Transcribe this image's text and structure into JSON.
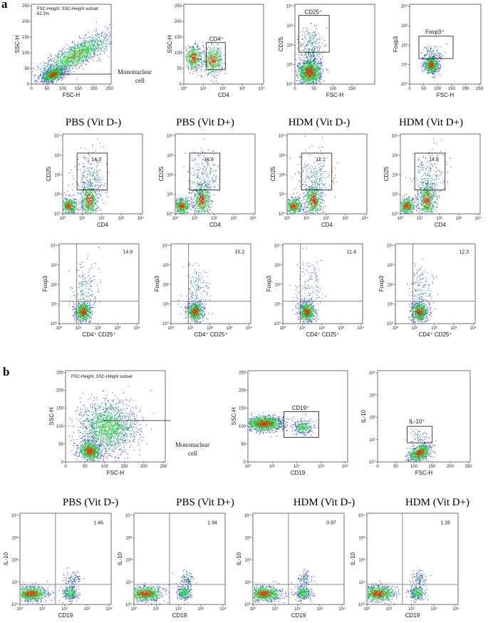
{
  "figure": {
    "panel_a_letter": "a",
    "panel_b_letter": "b",
    "conditions": [
      "PBS (Vit D-)",
      "PBS (Vit D+)",
      "HDM (Vit D-)",
      "HDM (Vit D+)"
    ]
  },
  "colors": {
    "density_low": "#1e1ecc",
    "density_mid": "#22cc44",
    "density_high": "#ee2200",
    "gate": "#111111"
  },
  "chart_data": [
    {
      "id": "a_scatter",
      "type": "scatter",
      "xlabel": "FSC-H",
      "ylabel": "SSC-H",
      "xticks": [
        "0",
        "50",
        "100",
        "150",
        "200",
        "250"
      ],
      "yticks": [
        "0",
        "50",
        "100",
        "150",
        "200",
        "250"
      ],
      "subset_label": "FSC-Height, SSC-Height subset",
      "subset_percent": "82.3%",
      "annotation": "Mononuclear cell"
    },
    {
      "id": "a_cd4",
      "type": "scatter",
      "xlabel": "CD4",
      "ylabel": "SSC-H",
      "xticks": [
        "10⁰",
        "10¹",
        "10²",
        "10³",
        "10⁴"
      ],
      "yticks": [
        "0",
        "50",
        "100",
        "150",
        "200",
        "250"
      ],
      "gate_label": "CD4⁺"
    },
    {
      "id": "a_cd25",
      "type": "scatter",
      "xlabel": "FSC-H",
      "ylabel": "CD25",
      "xticks": [
        "0",
        "50",
        "100",
        "150"
      ],
      "yticks": [
        "10⁰",
        "10¹",
        "10²",
        "10³",
        "10⁴"
      ],
      "gate_label": "CD25⁺"
    },
    {
      "id": "a_foxp3",
      "type": "scatter",
      "xlabel": "FSC-H",
      "ylabel": "Foxp3",
      "xticks": [
        "0",
        "50",
        "100",
        "150",
        "200",
        "250"
      ],
      "yticks": [
        "10⁰",
        "10¹",
        "10²",
        "10³",
        "10⁴"
      ],
      "gate_label": "Foxp3⁺"
    },
    {
      "id": "a_cd25_row",
      "type": "scatter",
      "xlabel": "CD4",
      "ylabel": "CD25",
      "xticks": [
        "10⁰",
        "10¹",
        "10²",
        "10³",
        "10⁴"
      ],
      "yticks": [
        "10⁰",
        "10¹",
        "10²",
        "10³",
        "10⁴"
      ],
      "values": [
        "14.3",
        "16.6",
        "12.1",
        "14.8"
      ]
    },
    {
      "id": "a_foxp3_row",
      "type": "scatter",
      "xlabel": "CD4⁺ CD25⁺",
      "ylabel": "Foxp3",
      "xticks": [
        "10⁰",
        "10¹",
        "10²",
        "10³",
        "10⁴"
      ],
      "yticks": [
        "10⁰",
        "10¹",
        "10²",
        "10³",
        "10⁴"
      ],
      "values": [
        "14.9",
        "15.2",
        "11.4",
        "12.3"
      ]
    },
    {
      "id": "b_scatter",
      "type": "scatter",
      "xlabel": "FSC-H",
      "ylabel": "SSC-H",
      "xticks": [
        "0",
        "50",
        "100",
        "150",
        "200",
        "250"
      ],
      "yticks": [
        "0",
        "50",
        "100",
        "150",
        "200",
        "250"
      ],
      "subset_label": "FSC-Height, SSC-Height subset",
      "annotation": "Mononuclear cell"
    },
    {
      "id": "b_cd19",
      "type": "scatter",
      "xlabel": "CD19",
      "ylabel": "SSC-H",
      "xticks": [
        "10⁰",
        "10¹",
        "10²",
        "10³",
        "10⁴"
      ],
      "yticks": [
        "0",
        "50",
        "100",
        "150",
        "200",
        "250"
      ],
      "gate_label": "CD19⁺"
    },
    {
      "id": "b_il10",
      "type": "scatter",
      "xlabel": "FSC-H",
      "ylabel": "IL-10",
      "xticks": [
        "0",
        "50",
        "100",
        "150",
        "200",
        "250"
      ],
      "yticks": [
        "10⁰",
        "10¹",
        "10²",
        "10³",
        "10⁴"
      ],
      "gate_label": "IL-10⁺"
    },
    {
      "id": "b_il10_row",
      "type": "scatter",
      "xlabel": "CD19",
      "ylabel": "IL-10",
      "xticks": [
        "10⁰",
        "10¹",
        "10²",
        "10³",
        "10⁴"
      ],
      "yticks": [
        "10⁰",
        "10¹",
        "10²",
        "10³",
        "10⁴"
      ],
      "values": [
        "1.46",
        "1.94",
        "0.97",
        "1.28"
      ]
    }
  ]
}
